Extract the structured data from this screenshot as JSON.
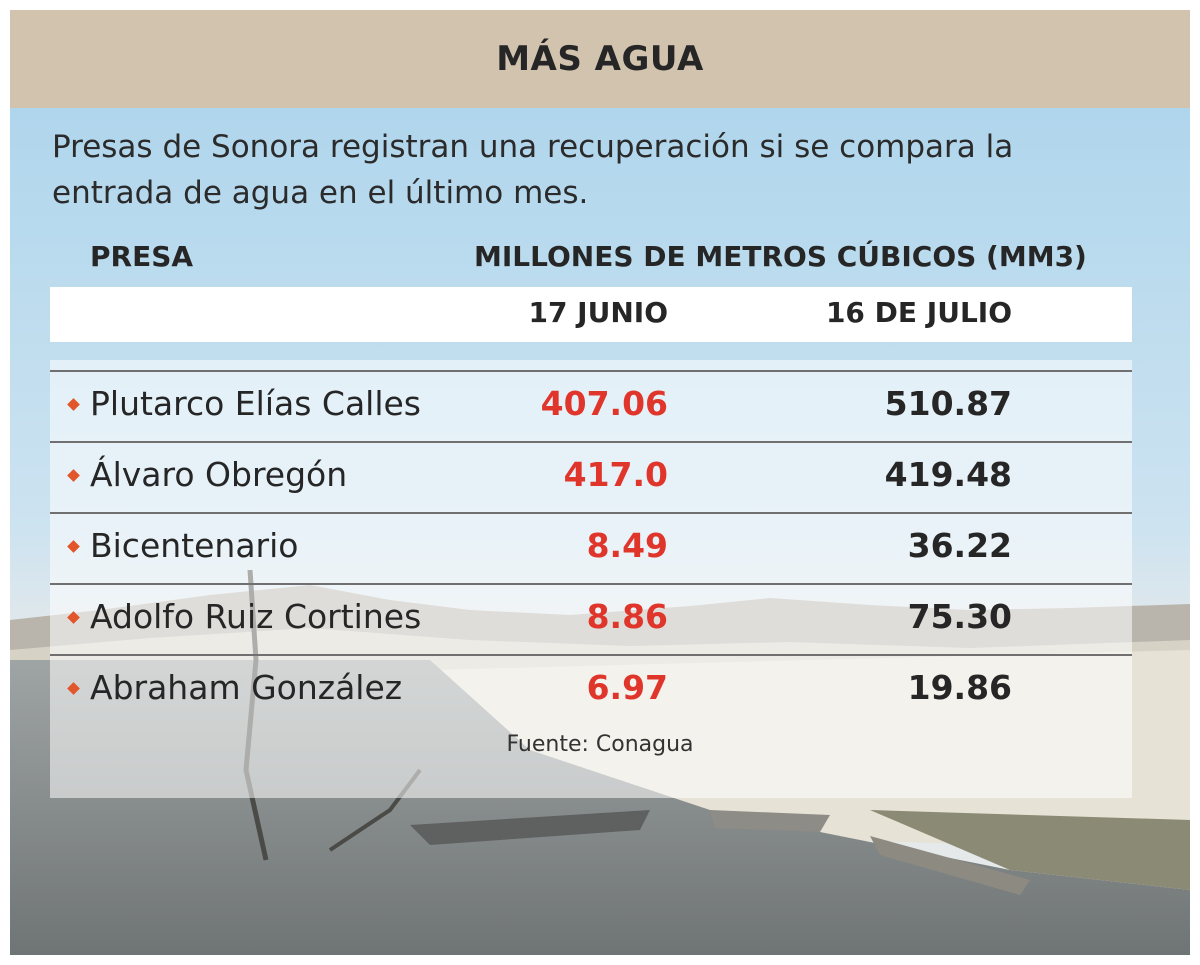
{
  "header": {
    "title": "MÁS AGUA"
  },
  "intro": {
    "line1": "Presas de Sonora registran una recuperación si se compara la",
    "line2": "entrada de agua en el último mes."
  },
  "colors": {
    "header_bg": "#d1c3ad",
    "bullet": "#e2562b",
    "value_june": "#e0352b",
    "value_july": "#262626"
  },
  "chart_data": {
    "type": "table",
    "columns": {
      "name": "PRESA",
      "units": "MILLONES DE METROS CÚBICOS (MM3)"
    },
    "dates": [
      "17 JUNIO",
      "16 DE JULIO"
    ],
    "rows": [
      {
        "name": "Plutarco Elías Calles",
        "june": "407.06",
        "july": "510.87"
      },
      {
        "name": "Álvaro Obregón",
        "june": "417.0",
        "july": "419.48"
      },
      {
        "name": "Bicentenario",
        "june": "8.49",
        "july": "36.22"
      },
      {
        "name": "Adolfo Ruiz Cortines",
        "june": "8.86",
        "july": "75.30"
      },
      {
        "name": "Abraham González",
        "june": "6.97",
        "july": "19.86"
      }
    ],
    "source": "Fuente: Conagua"
  }
}
